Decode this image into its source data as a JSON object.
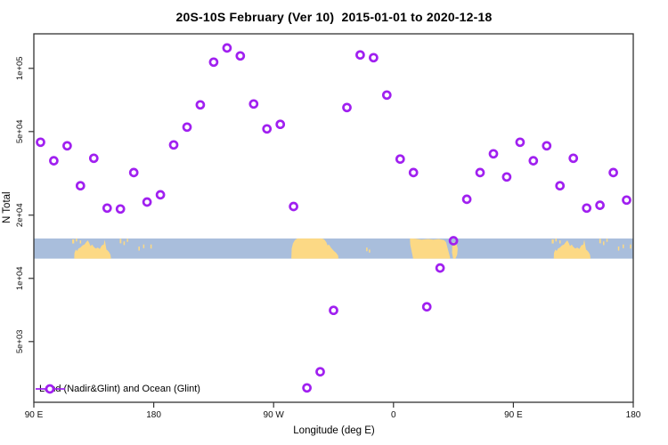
{
  "chart_data": {
    "type": "scatter",
    "title": "20S-10S February (Ver 10)  2015-01-01 to 2020-12-18",
    "xlabel": "Longitude (deg E)",
    "ylabel": "N Total",
    "x_range": [
      90,
      540
    ],
    "y_log_range": [
      2570,
      146000
    ],
    "grid": "off",
    "x_ticks": [
      {
        "pos": 90,
        "label": "90 E"
      },
      {
        "pos": 180,
        "label": "180"
      },
      {
        "pos": 270,
        "label": "90 W"
      },
      {
        "pos": 360,
        "label": "0"
      },
      {
        "pos": 450,
        "label": "90 E"
      },
      {
        "pos": 540,
        "label": "180"
      }
    ],
    "y_ticks": [
      {
        "value": 100000,
        "label": "1e+05"
      },
      {
        "value": 50000,
        "label": "5e+04"
      },
      {
        "value": 20000,
        "label": "2e+04"
      },
      {
        "value": 10000,
        "label": "1e+04"
      },
      {
        "value": 5000,
        "label": "5e+03"
      }
    ],
    "legend": {
      "label": "Land (Nadir&Glint) and Ocean (Glint)",
      "position": "bottom-left",
      "style": "line-with-open-circle"
    },
    "marker": {
      "shape": "open-circle",
      "color": "#A020F0",
      "radius_px": 4,
      "stroke_px": 2.7
    },
    "axis_color": "#333333",
    "points": [
      {
        "lon": 95,
        "n": 44500
      },
      {
        "lon": 105,
        "n": 36300
      },
      {
        "lon": 115,
        "n": 42800
      },
      {
        "lon": 125,
        "n": 27600
      },
      {
        "lon": 135,
        "n": 37300
      },
      {
        "lon": 145,
        "n": 21600
      },
      {
        "lon": 155,
        "n": 21400
      },
      {
        "lon": 165,
        "n": 31900
      },
      {
        "lon": 175,
        "n": 23100
      },
      {
        "lon": 185,
        "n": 25000
      },
      {
        "lon": 195,
        "n": 43200
      },
      {
        "lon": 205,
        "n": 52500
      },
      {
        "lon": 215,
        "n": 67000
      },
      {
        "lon": 225,
        "n": 107000
      },
      {
        "lon": 235,
        "n": 125000
      },
      {
        "lon": 245,
        "n": 114600
      },
      {
        "lon": 255,
        "n": 67700
      },
      {
        "lon": 265,
        "n": 51500
      },
      {
        "lon": 275,
        "n": 54100
      },
      {
        "lon": 285,
        "n": 22000
      },
      {
        "lon": 295,
        "n": 3010
      },
      {
        "lon": 305,
        "n": 3590
      },
      {
        "lon": 315,
        "n": 7040
      },
      {
        "lon": 325,
        "n": 65100
      },
      {
        "lon": 335,
        "n": 115800
      },
      {
        "lon": 345,
        "n": 112400
      },
      {
        "lon": 355,
        "n": 74600
      },
      {
        "lon": 365,
        "n": 37000
      },
      {
        "lon": 375,
        "n": 31900
      },
      {
        "lon": 385,
        "n": 7320
      },
      {
        "lon": 395,
        "n": 11200
      },
      {
        "lon": 405,
        "n": 15100
      },
      {
        "lon": 415,
        "n": 23800
      },
      {
        "lon": 425,
        "n": 31900
      },
      {
        "lon": 435,
        "n": 39200
      },
      {
        "lon": 445,
        "n": 30400
      },
      {
        "lon": 455,
        "n": 44500
      },
      {
        "lon": 465,
        "n": 36300
      },
      {
        "lon": 475,
        "n": 42800
      },
      {
        "lon": 485,
        "n": 27600
      },
      {
        "lon": 495,
        "n": 37300
      },
      {
        "lon": 505,
        "n": 21600
      },
      {
        "lon": 515,
        "n": 22300
      },
      {
        "lon": 525,
        "n": 31900
      },
      {
        "lon": 535,
        "n": 23600
      }
    ],
    "map_strip": {
      "description": "20S-10S latitude band map drawn across plot",
      "band_n_range": [
        12400,
        15500
      ],
      "ocean_color": "#A9BEDC",
      "land_color": "#FCD985",
      "land_polygons": [
        {
          "name": "australia-indonesia",
          "repeat_offsets": [
            0,
            360
          ],
          "pts": [
            [
              120.3,
              1
            ],
            [
              120.5,
              0.72
            ],
            [
              121.5,
              0.55
            ],
            [
              122.5,
              0.62
            ],
            [
              123.5,
              0.5
            ],
            [
              125,
              0.45
            ],
            [
              126.5,
              0.35
            ],
            [
              128,
              0.3
            ],
            [
              129.3,
              0.18
            ],
            [
              130.5,
              0.1
            ],
            [
              131.5,
              0.22
            ],
            [
              132.5,
              0.38
            ],
            [
              133.8,
              0.3
            ],
            [
              135,
              0.42
            ],
            [
              136.5,
              0.5
            ],
            [
              138,
              0.45
            ],
            [
              139.5,
              0.52
            ],
            [
              141,
              0.35
            ],
            [
              142.5,
              0.3
            ],
            [
              143.2,
              0.06
            ],
            [
              143.8,
              0.3
            ],
            [
              144.5,
              0.55
            ],
            [
              145.5,
              0.6
            ],
            [
              146.5,
              0.68
            ],
            [
              147.5,
              0.8
            ],
            [
              148,
              1
            ]
          ]
        },
        {
          "name": "south-america",
          "repeat_offsets": [
            0
          ],
          "pts": [
            [
              283.3,
              1
            ],
            [
              283.6,
              0.5
            ],
            [
              284.5,
              0.25
            ],
            [
              286,
              0.08
            ],
            [
              288,
              0
            ],
            [
              306,
              0
            ],
            [
              308,
              0.05
            ],
            [
              309.5,
              0.18
            ],
            [
              310.5,
              0.35
            ],
            [
              311.5,
              0.3
            ],
            [
              313,
              0.45
            ],
            [
              315,
              0.6
            ],
            [
              317,
              0.72
            ],
            [
              318.4,
              0.85
            ],
            [
              318.7,
              1
            ]
          ]
        },
        {
          "name": "africa",
          "repeat_offsets": [
            0
          ],
          "pts": [
            [
              372.3,
              0
            ],
            [
              377,
              0.02
            ],
            [
              381,
              0.06
            ],
            [
              386,
              0.03
            ],
            [
              390,
              0.06
            ],
            [
              394,
              0.03
            ],
            [
              398,
              0.08
            ],
            [
              399.5,
              0.2
            ],
            [
              400.5,
              0.45
            ],
            [
              401.5,
              0.7
            ],
            [
              402.3,
              0.9
            ],
            [
              402.6,
              1
            ],
            [
              374.8,
              1
            ],
            [
              373.5,
              0.6
            ],
            [
              372.6,
              0.3
            ]
          ]
        },
        {
          "name": "madagascar",
          "repeat_offsets": [
            0
          ],
          "pts": [
            [
              404.2,
              0.3
            ],
            [
              405.5,
              0.18
            ],
            [
              407.3,
              0.25
            ],
            [
              408.2,
              0.5
            ],
            [
              407.8,
              0.8
            ],
            [
              406.5,
              1
            ],
            [
              404.8,
              1
            ],
            [
              403.9,
              0.7
            ]
          ]
        }
      ],
      "islands": [
        {
          "lon": 118.8,
          "frac": 0.05,
          "w": 1.5,
          "h": 0.2,
          "repeat_offsets": [
            0,
            360
          ]
        },
        {
          "lon": 121.5,
          "frac": 0.0,
          "w": 0.8,
          "h": 0.15,
          "repeat_offsets": [
            0,
            360
          ]
        },
        {
          "lon": 124.5,
          "frac": 0.1,
          "w": 0.6,
          "h": 0.15,
          "repeat_offsets": [
            0,
            360
          ]
        },
        {
          "lon": 154.5,
          "frac": 0.02,
          "w": 1.2,
          "h": 0.22,
          "repeat_offsets": [
            0,
            360
          ]
        },
        {
          "lon": 157.3,
          "frac": 0.15,
          "w": 0.7,
          "h": 0.18,
          "repeat_offsets": [
            0,
            360
          ]
        },
        {
          "lon": 159.8,
          "frac": 0.02,
          "w": 0.6,
          "h": 0.15,
          "repeat_offsets": [
            0,
            360
          ]
        },
        {
          "lon": 168.5,
          "frac": 0.4,
          "w": 0.7,
          "h": 0.2,
          "repeat_offsets": [
            0,
            360
          ]
        },
        {
          "lon": 172.0,
          "frac": 0.3,
          "w": 0.5,
          "h": 0.18,
          "repeat_offsets": [
            0,
            360
          ]
        },
        {
          "lon": 177.5,
          "frac": 0.3,
          "w": 0.6,
          "h": 0.2,
          "repeat_offsets": [
            0,
            360
          ]
        },
        {
          "lon": 339.5,
          "frac": 0.45,
          "w": 0.5,
          "h": 0.18,
          "repeat_offsets": [
            0
          ]
        },
        {
          "lon": 341.5,
          "frac": 0.55,
          "w": 0.4,
          "h": 0.15,
          "repeat_offsets": [
            0
          ]
        }
      ]
    }
  }
}
